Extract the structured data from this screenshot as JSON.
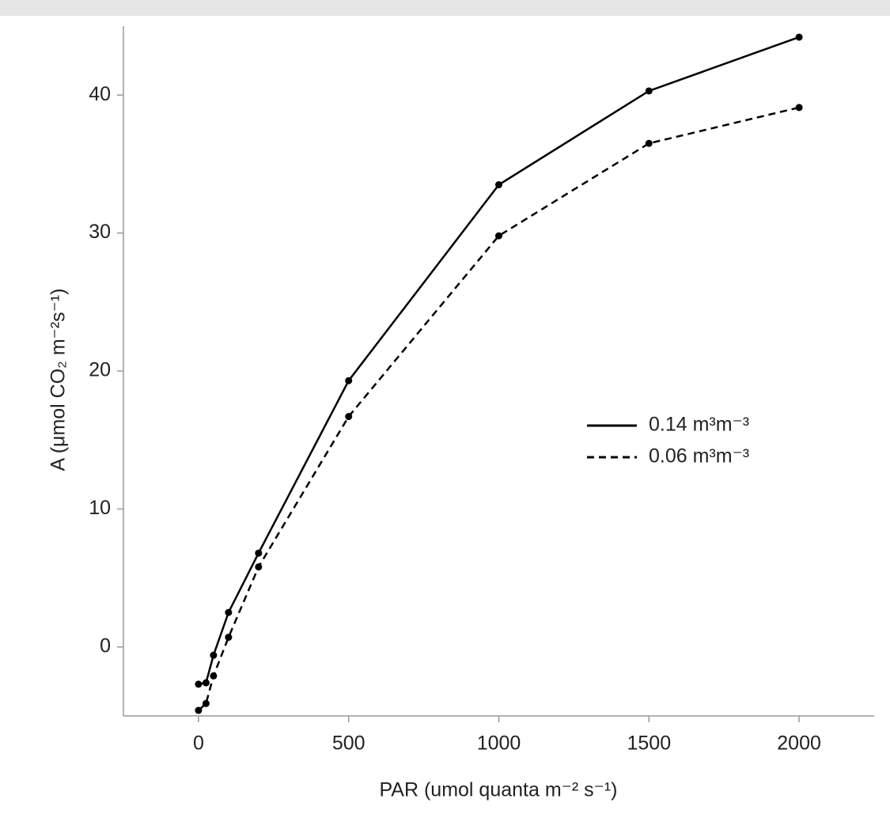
{
  "chart_data": {
    "type": "line",
    "x_label": "PAR (umol quanta m⁻² s⁻¹)",
    "y_label": "A (μmol CO₂ m⁻²s⁻¹)",
    "x": [
      0,
      25,
      50,
      100,
      200,
      500,
      1000,
      1500,
      2000
    ],
    "series": [
      {
        "name": "0.14 m³m⁻³",
        "color": "#000000",
        "line_style": "solid",
        "values": [
          -2.7,
          -2.6,
          -0.6,
          2.5,
          6.8,
          19.3,
          33.5,
          40.3,
          44.2
        ]
      },
      {
        "name": "0.06 m³m⁻³",
        "color": "#000000",
        "line_style": "dashed",
        "values": [
          -4.6,
          -4.1,
          -2.1,
          0.7,
          5.8,
          16.7,
          29.8,
          36.5,
          39.1
        ]
      }
    ],
    "xlim": [
      -250,
      2250
    ],
    "xticks": [
      0,
      500,
      1000,
      1500,
      2000
    ],
    "ylim": [
      -5,
      45
    ],
    "yticks": [
      0,
      10,
      20,
      30,
      40
    ],
    "legend": "right",
    "grid": false
  }
}
